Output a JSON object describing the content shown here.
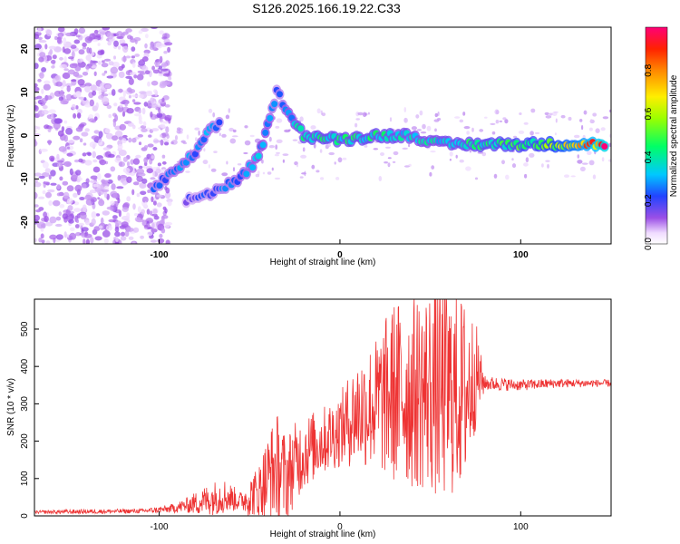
{
  "title": "S126.2025.166.19.22.C33",
  "chart_data": [
    {
      "type": "heatmap",
      "xlabel": "Height of straight line (km)",
      "ylabel": "Frequency (Hz)",
      "xlim": [
        -169,
        150
      ],
      "ylim": [
        -25,
        25
      ],
      "xticks": [
        -100,
        0,
        100
      ],
      "yticks": [
        -20,
        -10,
        0,
        10,
        20
      ],
      "colorbar": {
        "label": "Normalized spectral amplitude",
        "range": [
          0,
          1
        ],
        "ticks": [
          0.0,
          0.2,
          0.4,
          0.6,
          0.8
        ]
      },
      "ridge": [
        {
          "x": -103,
          "y": -12,
          "amp": 0.25
        },
        {
          "x": -90,
          "y": -8,
          "amp": 0.3
        },
        {
          "x": -80,
          "y": -4,
          "amp": 0.3
        },
        {
          "x": -72,
          "y": 1,
          "amp": 0.3
        },
        {
          "x": -65,
          "y": 3,
          "amp": 0.25
        },
        {
          "x": -85,
          "y": -15,
          "amp": 0.2
        },
        {
          "x": -70,
          "y": -13,
          "amp": 0.25
        },
        {
          "x": -55,
          "y": -10,
          "amp": 0.3
        },
        {
          "x": -45,
          "y": -5,
          "amp": 0.35
        },
        {
          "x": -40,
          "y": 2,
          "amp": 0.35
        },
        {
          "x": -35,
          "y": 10,
          "amp": 0.25
        },
        {
          "x": -20,
          "y": 0,
          "amp": 0.45
        },
        {
          "x": 0,
          "y": -1,
          "amp": 0.45
        },
        {
          "x": 20,
          "y": 0,
          "amp": 0.45
        },
        {
          "x": 40,
          "y": 0,
          "amp": 0.4
        },
        {
          "x": 55,
          "y": -2,
          "amp": 0.4
        },
        {
          "x": 70,
          "y": -2,
          "amp": 0.45
        },
        {
          "x": 90,
          "y": -2,
          "amp": 0.5
        },
        {
          "x": 110,
          "y": -2,
          "amp": 0.55
        },
        {
          "x": 130,
          "y": -2,
          "amp": 0.75
        },
        {
          "x": 148,
          "y": -2,
          "amp": 1.0
        }
      ]
    },
    {
      "type": "line",
      "xlabel": "Height of straight line (km)",
      "ylabel": "SNR (10 * v/v)",
      "xlim": [
        -169,
        150
      ],
      "ylim": [
        0,
        580
      ],
      "xticks": [
        -100,
        0,
        100
      ],
      "yticks": [
        0,
        100,
        200,
        300,
        400,
        500
      ],
      "color": "#ee3333",
      "series": [
        {
          "x": [
            -169,
            -150,
            -130,
            -110,
            -95,
            -85,
            -75,
            -65,
            -55,
            -45,
            -40,
            -35,
            -30,
            -25,
            -20,
            -10,
            0,
            10,
            20,
            30,
            40,
            50,
            55,
            60,
            70,
            75,
            80,
            100,
            120,
            140,
            150
          ],
          "mean": [
            10,
            11,
            12,
            13,
            18,
            28,
            40,
            55,
            40,
            60,
            100,
            130,
            100,
            140,
            170,
            200,
            230,
            280,
            300,
            330,
            330,
            340,
            330,
            330,
            330,
            380,
            355,
            350,
            355,
            355,
            355
          ],
          "amplitude": [
            4,
            6,
            6,
            6,
            10,
            20,
            40,
            50,
            25,
            80,
            120,
            150,
            120,
            110,
            100,
            90,
            100,
            150,
            180,
            250,
            260,
            280,
            300,
            290,
            250,
            150,
            20,
            15,
            12,
            10,
            10
          ]
        }
      ]
    }
  ]
}
